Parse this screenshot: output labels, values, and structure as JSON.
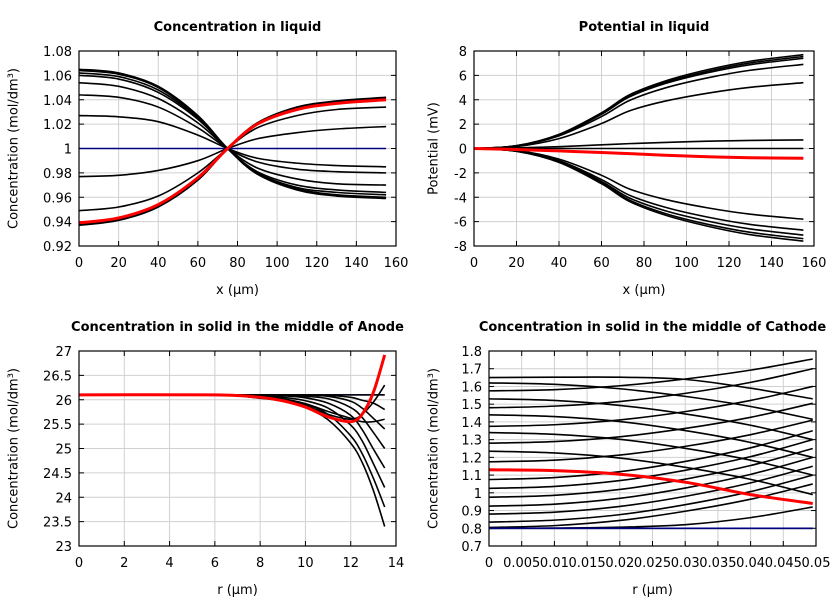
{
  "colors": {
    "default_line": "#000000",
    "highlight_line": "#ff0000",
    "initial_line": "#000080",
    "grid": "#d0d0d0"
  },
  "chart_data": [
    {
      "type": "line",
      "title": "Concentration in liquid",
      "xlabel": "x (µm)",
      "ylabel": "Concentration (mol/dm³)",
      "xlim": [
        0,
        160
      ],
      "ylim": [
        0.92,
        1.08
      ],
      "xticks": [
        "0",
        "20",
        "40",
        "60",
        "80",
        "100",
        "120",
        "140",
        "160"
      ],
      "yticks": [
        "0.92",
        "0.94",
        "0.96",
        "0.98",
        "1",
        "1.02",
        "1.04",
        "1.06",
        "1.08"
      ],
      "grid": true,
      "x": [
        0,
        20,
        40,
        60,
        75,
        90,
        110,
        130,
        155
      ],
      "series": [
        {
          "color": "#000080",
          "values": [
            1,
            1,
            1,
            1,
            1,
            1,
            1,
            1,
            1
          ]
        },
        {
          "values": [
            1.065,
            1.062,
            1.051,
            1.027,
            1.0,
            0.979,
            0.966,
            0.961,
            0.959
          ]
        },
        {
          "values": [
            1.064,
            1.061,
            1.05,
            1.026,
            1.0,
            0.979,
            0.967,
            0.962,
            0.96
          ]
        },
        {
          "values": [
            1.062,
            1.059,
            1.048,
            1.025,
            1.0,
            0.98,
            0.968,
            0.964,
            0.962
          ]
        },
        {
          "values": [
            1.06,
            1.057,
            1.046,
            1.024,
            1.0,
            0.981,
            0.97,
            0.966,
            0.964
          ]
        },
        {
          "values": [
            1.054,
            1.051,
            1.041,
            1.021,
            1.0,
            0.984,
            0.975,
            0.971,
            0.97
          ]
        },
        {
          "values": [
            1.044,
            1.042,
            1.034,
            1.017,
            1.0,
            0.989,
            0.983,
            0.981,
            0.98
          ]
        },
        {
          "values": [
            1.027,
            1.026,
            1.022,
            1.011,
            1.0,
            0.992,
            0.988,
            0.986,
            0.985
          ]
        },
        {
          "values": [
            0.937,
            0.941,
            0.952,
            0.974,
            1.0,
            1.021,
            1.034,
            1.039,
            1.042
          ]
        },
        {
          "values": [
            0.938,
            0.942,
            0.953,
            0.975,
            1.0,
            1.021,
            1.033,
            1.038,
            1.041
          ]
        },
        {
          "values": [
            0.949,
            0.952,
            0.961,
            0.98,
            1.0,
            1.017,
            1.027,
            1.032,
            1.034
          ]
        },
        {
          "values": [
            0.977,
            0.978,
            0.982,
            0.99,
            1.0,
            1.008,
            1.013,
            1.016,
            1.018
          ]
        },
        {
          "color": "#ff0000",
          "values": [
            0.939,
            0.943,
            0.954,
            0.976,
            1.0,
            1.02,
            1.032,
            1.037,
            1.04
          ]
        }
      ]
    },
    {
      "type": "line",
      "title": "Potential in liquid",
      "xlabel": "x (µm)",
      "ylabel": "Potential (mV)",
      "xlim": [
        0,
        160
      ],
      "ylim": [
        -8,
        8
      ],
      "xticks": [
        "0",
        "20",
        "40",
        "60",
        "80",
        "100",
        "120",
        "140",
        "160"
      ],
      "yticks": [
        "-8",
        "-6",
        "-4",
        "-2",
        "0",
        "2",
        "4",
        "6",
        "8"
      ],
      "grid": true,
      "x": [
        0,
        20,
        40,
        60,
        73,
        90,
        110,
        130,
        155
      ],
      "series": [
        {
          "values": [
            0,
            0,
            0,
            0,
            0,
            0,
            0,
            0,
            0
          ]
        },
        {
          "values": [
            0,
            0.23,
            1.16,
            2.93,
            4.39,
            5.54,
            6.47,
            7.16,
            7.7
          ]
        },
        {
          "values": [
            0,
            0.23,
            1.13,
            2.87,
            4.3,
            5.44,
            6.34,
            7.02,
            7.55
          ]
        },
        {
          "values": [
            0,
            0.22,
            1.11,
            2.81,
            4.22,
            5.33,
            6.22,
            6.88,
            7.4
          ]
        },
        {
          "values": [
            0,
            0.21,
            1.04,
            2.62,
            3.93,
            4.97,
            5.8,
            6.42,
            6.9
          ]
        },
        {
          "values": [
            0,
            0.16,
            0.81,
            2.05,
            3.08,
            3.89,
            4.54,
            5.02,
            5.4
          ]
        },
        {
          "values": [
            0,
            0.05,
            0.15,
            0.3,
            0.4,
            0.5,
            0.6,
            0.66,
            0.7
          ]
        },
        {
          "values": [
            0,
            -0.23,
            -1.14,
            -2.89,
            -4.33,
            -5.47,
            -6.38,
            -7.07,
            -7.6
          ]
        },
        {
          "values": [
            0,
            -0.22,
            -1.11,
            -2.81,
            -4.22,
            -5.33,
            -6.22,
            -6.88,
            -7.4
          ]
        },
        {
          "values": [
            0,
            -0.21,
            -1.07,
            -2.7,
            -4.05,
            -5.11,
            -5.96,
            -6.6,
            -7.1
          ]
        },
        {
          "values": [
            0,
            -0.2,
            -1.0,
            -2.55,
            -3.82,
            -4.82,
            -5.63,
            -6.23,
            -6.7
          ]
        },
        {
          "values": [
            0,
            -0.17,
            -0.87,
            -2.2,
            -3.31,
            -4.18,
            -4.87,
            -5.39,
            -5.8
          ]
        },
        {
          "color": "#ff0000",
          "values": [
            0,
            -0.08,
            -0.2,
            -0.33,
            -0.42,
            -0.55,
            -0.68,
            -0.76,
            -0.8
          ]
        }
      ]
    },
    {
      "type": "line",
      "title": "Concentration in solid in the middle of Anode",
      "xlabel": "r (µm)",
      "ylabel": "Concentration (mol/dm³)",
      "xlim": [
        0,
        14
      ],
      "ylim": [
        23,
        27
      ],
      "xticks": [
        "0",
        "2",
        "4",
        "6",
        "8",
        "10",
        "12",
        "14"
      ],
      "yticks": [
        "23",
        "23.5",
        "24",
        "24.5",
        "25",
        "25.5",
        "26",
        "26.5",
        "27"
      ],
      "grid": true,
      "x": [
        0,
        6,
        8,
        9,
        10,
        11,
        12,
        12.5,
        13,
        13.5
      ],
      "series": [
        {
          "color": "#000080",
          "values": [
            26.1,
            26.1,
            26.1,
            26.1,
            26.1,
            26.1,
            26.1,
            26.1,
            26.1,
            26.1
          ]
        },
        {
          "values": [
            26.1,
            26.1,
            26.03,
            25.97,
            25.84,
            25.59,
            25.11,
            24.72,
            24.14,
            23.4
          ]
        },
        {
          "values": [
            26.1,
            26.1,
            26.06,
            26.01,
            25.91,
            25.7,
            25.26,
            24.9,
            24.39,
            23.8
          ]
        },
        {
          "values": [
            26.1,
            26.1,
            26.09,
            26.05,
            25.98,
            25.83,
            25.48,
            25.16,
            24.69,
            24.2
          ]
        },
        {
          "values": [
            26.1,
            26.1,
            26.1,
            26.08,
            26.04,
            25.93,
            25.68,
            25.39,
            24.99,
            24.6
          ]
        },
        {
          "values": [
            26.1,
            26.1,
            26.1,
            26.1,
            26.07,
            26.02,
            25.84,
            25.64,
            25.33,
            25.0
          ]
        },
        {
          "values": [
            26.1,
            26.1,
            26.1,
            26.1,
            26.09,
            26.07,
            25.97,
            25.83,
            25.62,
            25.4
          ]
        },
        {
          "values": [
            26.1,
            26.1,
            26.1,
            26.1,
            26.1,
            26.09,
            26.05,
            25.99,
            25.93,
            25.8
          ]
        },
        {
          "values": [
            26.1,
            26.1,
            26.07,
            26.02,
            25.92,
            25.76,
            25.62,
            25.55,
            25.55,
            25.6
          ]
        },
        {
          "values": [
            26.1,
            26.1,
            26.06,
            26.0,
            25.88,
            25.7,
            25.6,
            25.7,
            25.95,
            26.3
          ]
        },
        {
          "values": [
            26.1,
            26.1,
            26.1,
            26.1,
            26.1,
            26.1,
            26.1,
            26.1,
            26.1,
            26.1
          ]
        },
        {
          "color": "#ff0000",
          "values": [
            26.1,
            26.1,
            26.05,
            25.98,
            25.85,
            25.65,
            25.55,
            25.7,
            26.15,
            26.92
          ]
        }
      ]
    },
    {
      "type": "line",
      "title": "Concentration in solid in the middle of Cathode",
      "xlabel": "r (µm)",
      "ylabel": "Concentration (mol/dm³)",
      "xlim": [
        0,
        0.05
      ],
      "ylim": [
        0.7,
        1.8
      ],
      "xticks": [
        "0",
        "0.005",
        "0.01",
        "0.015",
        "0.02",
        "0.025",
        "0.03",
        "0.035",
        "0.04",
        "0.045",
        "0.05"
      ],
      "yticks": [
        "0.7",
        "0.8",
        "0.9",
        "1",
        "1.1",
        "1.2",
        "1.3",
        "1.4",
        "1.5",
        "1.6",
        "1.7",
        "1.8"
      ],
      "grid": true,
      "x": [
        0,
        0.01,
        0.02,
        0.03,
        0.04,
        0.0495
      ],
      "series": [
        {
          "values": [
            1.575,
            1.582,
            1.604,
            1.642,
            1.692,
            1.755
          ]
        },
        {
          "values": [
            1.48,
            1.489,
            1.515,
            1.561,
            1.623,
            1.7
          ]
        },
        {
          "values": [
            1.375,
            1.384,
            1.411,
            1.458,
            1.521,
            1.6
          ]
        },
        {
          "values": [
            1.28,
            1.289,
            1.316,
            1.363,
            1.426,
            1.505
          ]
        },
        {
          "values": [
            1.175,
            1.184,
            1.213,
            1.262,
            1.328,
            1.41
          ]
        },
        {
          "values": [
            1.075,
            1.086,
            1.119,
            1.177,
            1.254,
            1.35
          ]
        },
        {
          "values": [
            1.025,
            1.036,
            1.069,
            1.127,
            1.204,
            1.3
          ]
        },
        {
          "values": [
            0.975,
            0.986,
            1.019,
            1.077,
            1.154,
            1.25
          ]
        },
        {
          "values": [
            0.925,
            0.936,
            0.969,
            1.027,
            1.104,
            1.2
          ]
        },
        {
          "values": [
            0.88,
            0.891,
            0.923,
            0.98,
            1.056,
            1.15
          ]
        },
        {
          "values": [
            0.835,
            0.846,
            0.877,
            0.933,
            1.007,
            1.1
          ]
        },
        {
          "values": [
            0.805,
            0.815,
            0.844,
            0.896,
            0.964,
            1.05
          ]
        },
        {
          "values": [
            0.8,
            0.801,
            0.806,
            0.82,
            0.86,
            0.92
          ]
        },
        {
          "values": [
            1.65,
            1.652,
            1.652,
            1.64,
            1.59,
            1.53
          ]
        },
        {
          "values": [
            1.62,
            1.612,
            1.587,
            1.544,
            1.487,
            1.415
          ]
        },
        {
          "values": [
            1.53,
            1.521,
            1.493,
            1.445,
            1.381,
            1.3
          ]
        },
        {
          "values": [
            1.44,
            1.43,
            1.402,
            1.351,
            1.284,
            1.2
          ]
        },
        {
          "values": [
            1.34,
            1.33,
            1.302,
            1.251,
            1.184,
            1.1
          ]
        },
        {
          "values": [
            1.235,
            1.225,
            1.196,
            1.144,
            1.076,
            0.99
          ]
        },
        {
          "values": [
            0.8,
            0.8,
            0.8,
            0.8,
            0.8,
            0.8
          ]
        },
        {
          "color": "#000080",
          "values": [
            0.8,
            0.8,
            0.8,
            0.8,
            0.8,
            0.8
          ]
        },
        {
          "color": "#ff0000",
          "values": [
            1.13,
            1.125,
            1.105,
            1.06,
            0.99,
            0.94
          ]
        }
      ]
    }
  ]
}
